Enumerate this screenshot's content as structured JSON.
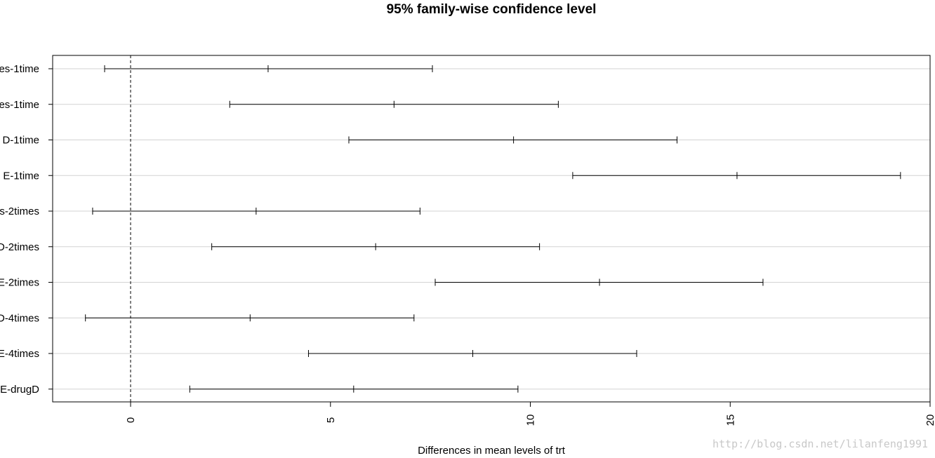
{
  "chart_data": {
    "type": "interval",
    "title": "95% family-wise confidence level",
    "xlabel": "Differences in mean levels of trt",
    "ylabel": "",
    "xlim": [
      -1.95,
      20.0
    ],
    "x_ticks": [
      0,
      5,
      10,
      15,
      20
    ],
    "x_tick_labels": [
      "0",
      "5",
      "10",
      "15",
      "20"
    ],
    "reference_line": 0,
    "grid": "horizontal",
    "categories": [
      "es-1time",
      "es-1time",
      "D-1time",
      "E-1time",
      "s-2times",
      "D-2times",
      "E-2times",
      "D-4times",
      "E-4times",
      "E-drugD"
    ],
    "series": [
      {
        "lower": [
          -0.65,
          2.48,
          5.46,
          11.06,
          -0.95,
          2.03,
          7.62,
          -1.13,
          4.45,
          1.48
        ],
        "estimate": [
          3.44,
          6.59,
          9.58,
          15.17,
          3.14,
          6.13,
          11.73,
          2.99,
          8.56,
          5.58
        ],
        "upper": [
          7.55,
          10.7,
          13.67,
          19.26,
          7.24,
          10.23,
          15.82,
          7.09,
          12.66,
          9.69
        ]
      }
    ]
  },
  "watermark": "http://blog.csdn.net/lilanfeng1991"
}
